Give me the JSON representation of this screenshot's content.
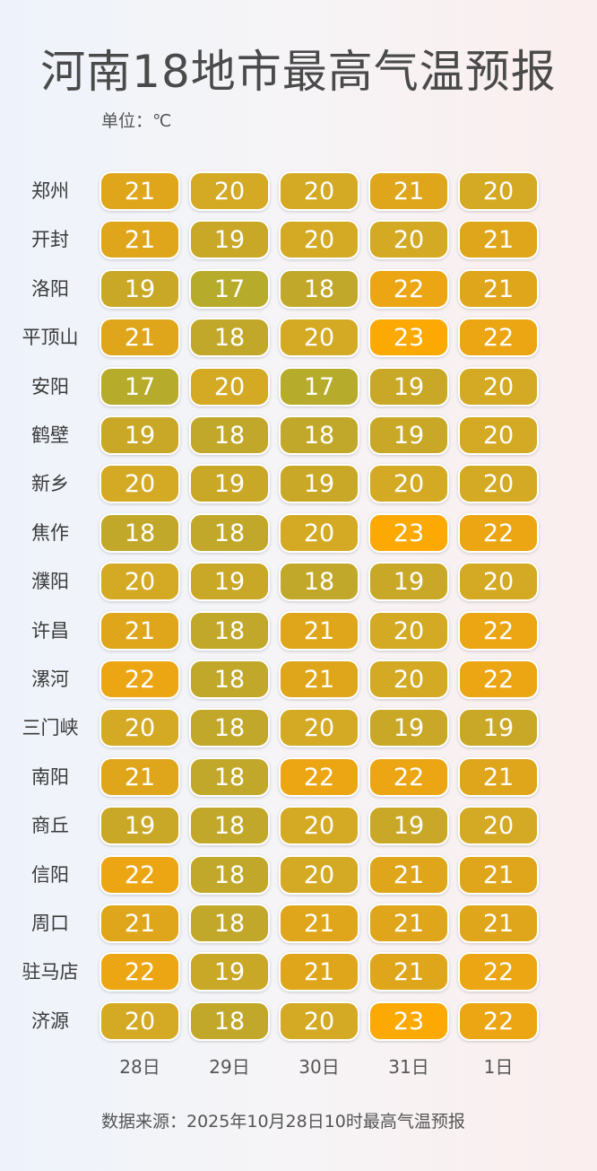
{
  "title": "河南18地市最高气温预报",
  "unit_label": "单位：℃",
  "source_label": "数据来源：2025年10月28日10时最高气温预报",
  "chart_data": {
    "type": "heatmap",
    "title": "河南18地市最高气温预报",
    "unit": "℃",
    "columns": [
      "28日",
      "29日",
      "30日",
      "31日",
      "1日"
    ],
    "rows": [
      "郑州",
      "开封",
      "洛阳",
      "平顶山",
      "安阳",
      "鹤壁",
      "新乡",
      "焦作",
      "濮阳",
      "许昌",
      "漯河",
      "三门峡",
      "南阳",
      "商丘",
      "信阳",
      "周口",
      "驻马店",
      "济源"
    ],
    "values": [
      [
        21,
        20,
        20,
        21,
        20
      ],
      [
        21,
        19,
        20,
        20,
        21
      ],
      [
        19,
        17,
        18,
        22,
        21
      ],
      [
        21,
        18,
        20,
        23,
        22
      ],
      [
        17,
        20,
        17,
        19,
        20
      ],
      [
        19,
        18,
        18,
        19,
        20
      ],
      [
        20,
        19,
        19,
        20,
        20
      ],
      [
        18,
        18,
        20,
        23,
        22
      ],
      [
        20,
        19,
        18,
        19,
        20
      ],
      [
        21,
        18,
        21,
        20,
        22
      ],
      [
        22,
        18,
        21,
        20,
        22
      ],
      [
        20,
        18,
        20,
        19,
        19
      ],
      [
        21,
        18,
        22,
        22,
        21
      ],
      [
        19,
        18,
        20,
        19,
        20
      ],
      [
        22,
        18,
        20,
        21,
        21
      ],
      [
        21,
        18,
        21,
        21,
        21
      ],
      [
        22,
        19,
        21,
        21,
        22
      ],
      [
        20,
        18,
        20,
        23,
        22
      ]
    ],
    "color_scale": {
      "17": "#b7ab2c",
      "18": "#c2a82a",
      "19": "#c9a827",
      "20": "#d4a923",
      "21": "#dfa61b",
      "22": "#eca614",
      "23": "#fca904"
    }
  }
}
